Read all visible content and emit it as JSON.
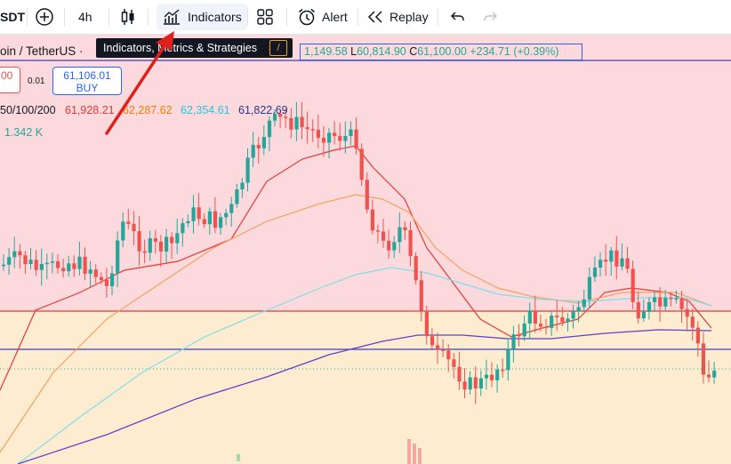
{
  "toolbar": {
    "symbol_suffix": "SDT",
    "interval": "4h",
    "indicators_label": "Indicators",
    "alert_label": "Alert",
    "replay_label": "Replay"
  },
  "tooltip": {
    "text": "Indicators, Metrics & Strategies",
    "shortcut": "/"
  },
  "legend": {
    "symbol_title": "oin / TetherUS ·",
    "ohlc_h_partial": "1,149.58",
    "ohlc_l_label": "L",
    "ohlc_l": "60,814.90",
    "ohlc_c_label": "C",
    "ohlc_c": "61,100.00",
    "change": "+234.71 (+0.39%)"
  },
  "trade": {
    "sell_partial": "00",
    "spread": "0.01",
    "buy_price": "61,106.01",
    "buy_label": "BUY"
  },
  "ma": {
    "label": "50/100/200",
    "values": [
      {
        "text": "61,928.21",
        "color": "#e53935"
      },
      {
        "text": "62,287.62",
        "color": "#f57c00"
      },
      {
        "text": "62,354.61",
        "color": "#26c6da"
      },
      {
        "text": "61,822.69",
        "color": "#283593"
      }
    ]
  },
  "volume": {
    "value": "1.342 K"
  },
  "colors": {
    "up": "#26a69a",
    "down": "#ef5350",
    "premium_zone": "#fcd9dc",
    "discount_zone": "#feecd1",
    "ma50": "#e53935",
    "ma100": "#f5a25d",
    "ma150": "#80deea",
    "ma200": "#5c3fc9"
  },
  "icons": [
    "plus-icon",
    "candlestick-icon",
    "indicators-icon",
    "layout-grid-icon",
    "alert-clock-icon",
    "replay-icon",
    "undo-icon",
    "redo-icon"
  ]
}
